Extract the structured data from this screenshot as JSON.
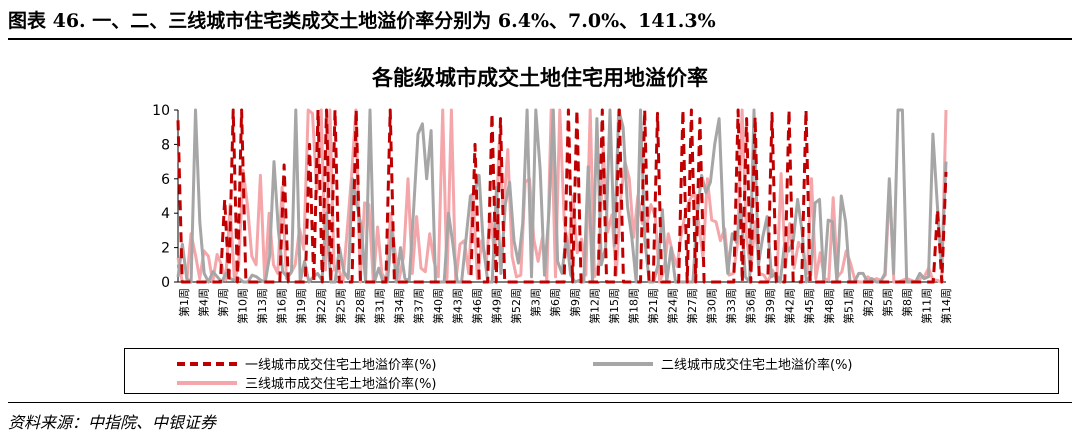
{
  "figure": {
    "title": "图表 46. 一、二、三线城市住宅类成交土地溢价率分别为 6.4%、7.0%、141.3%",
    "source": "资料来源：中指院、中银证券"
  },
  "chart_data": {
    "type": "line",
    "title": "各能级城市成交土地住宅用地溢价率",
    "xlabel": "",
    "ylabel": "",
    "ylim": [
      0,
      10
    ],
    "yticks": [
      0,
      2,
      4,
      6,
      8,
      10
    ],
    "grid": false,
    "legend_position": "bottom",
    "x_tick_labels": [
      "第1周",
      "第4周",
      "第7周",
      "第10周",
      "第13周",
      "第16周",
      "第19周",
      "第22周",
      "第25周",
      "第28周",
      "第31周",
      "第34周",
      "第37周",
      "第40周",
      "第43周",
      "第46周",
      "第49周",
      "第52周",
      "第3周",
      "第6周",
      "第9周",
      "第12周",
      "第15周",
      "第18周",
      "第21周",
      "第24周",
      "第27周",
      "第30周",
      "第33周",
      "第36周",
      "第39周",
      "第42周",
      "第45周",
      "第48周",
      "第51周",
      "第2周",
      "第5周",
      "第8周",
      "第11周",
      "第14周"
    ],
    "series": [
      {
        "name": "一线城市成交住宅土地溢价率(%)",
        "color": "#c00000",
        "style": "dashed",
        "values": [
          9.4,
          0,
          0,
          0,
          0,
          0,
          0,
          0,
          0,
          0,
          0,
          4.8,
          0,
          10,
          0,
          10,
          0,
          0,
          0,
          0,
          0,
          0,
          0,
          0,
          0,
          6.8,
          0,
          0,
          0,
          0,
          0,
          8,
          0,
          10,
          0,
          10,
          0,
          10,
          0,
          0,
          0,
          0,
          10,
          0,
          0,
          0,
          0,
          0,
          0,
          0,
          10,
          0,
          0,
          0,
          0,
          0,
          0,
          0,
          0,
          0,
          0,
          0,
          0,
          0,
          0,
          0,
          0,
          0,
          0,
          0,
          8,
          0,
          0,
          0,
          9.8,
          0,
          9.5,
          0,
          0,
          0,
          0,
          0,
          0,
          0,
          0,
          0,
          0,
          0,
          0,
          0,
          0,
          0,
          10,
          0,
          10,
          0,
          0,
          0,
          0,
          0,
          10,
          0,
          0,
          0,
          10,
          0,
          0,
          0,
          0,
          0,
          10,
          0,
          0,
          9.8,
          0,
          0,
          0,
          0,
          0,
          10,
          0,
          10,
          0,
          9.5,
          0,
          0,
          0,
          0,
          0,
          0,
          0,
          0,
          10,
          0,
          9.5,
          0,
          9.6,
          0,
          0,
          0,
          9.8,
          0,
          0,
          0,
          10,
          0,
          0,
          0,
          10,
          0,
          0,
          0,
          0,
          0,
          0,
          0,
          0,
          0,
          0,
          0,
          0,
          0,
          0,
          0,
          0,
          0,
          0,
          0,
          0,
          0,
          0,
          0,
          0,
          0,
          0,
          0,
          0,
          0,
          0,
          4.2,
          0,
          6.4
        ]
      },
      {
        "name": "二线城市成交住宅土地溢价率(%)",
        "color": "#a6a6a6",
        "style": "solid",
        "values": [
          0.3,
          2.2,
          0.2,
          0,
          10,
          3.5,
          0.5,
          0,
          0.6,
          0.3,
          0,
          0.5,
          0.2,
          0.1,
          0.2,
          0,
          0,
          0.4,
          0.3,
          0.1,
          0,
          1.5,
          7,
          3,
          0.6,
          0.3,
          0.6,
          10,
          0,
          1.2,
          0,
          0.3,
          0.5,
          0.1,
          4,
          0,
          0,
          2,
          0.6,
          0.2,
          6,
          4.5,
          3.2,
          0,
          10,
          0,
          0.8,
          0,
          0,
          3,
          0,
          2,
          0.2,
          0.1,
          4.2,
          8.6,
          9.2,
          6,
          8.8,
          0,
          0,
          0,
          4,
          2.2,
          0,
          0,
          2.5,
          5,
          5.2,
          6.2,
          2,
          0,
          0,
          5.5,
          0.5,
          4.5,
          5.8,
          2.4,
          1.1,
          3.4,
          10,
          0.3,
          10,
          6.5,
          0.4,
          4,
          10,
          1.2,
          0.5,
          2.7,
          0.4,
          0,
          0.1,
          0,
          6.7,
          0,
          9.5,
          1,
          2,
          10,
          2.1,
          10,
          9,
          4.4,
          2.6,
          0,
          10,
          2.4,
          0,
          0,
          1,
          4.2,
          0,
          2,
          0,
          0,
          0,
          0,
          0,
          4,
          6.2,
          5.2,
          5.8,
          8,
          9.5,
          3.2,
          0.5,
          2.8,
          2.3,
          4.5,
          0.3,
          0,
          10,
          1,
          2.6,
          3.8,
          0.3,
          0.5,
          0,
          2.2,
          1.8,
          2.4,
          4.8,
          3,
          0,
          0.4,
          4.6,
          4.8,
          0,
          3.6,
          3.5,
          0,
          5,
          3.5,
          0,
          0,
          0.5,
          0.5,
          0,
          0.2,
          0,
          0,
          0.5,
          6,
          0.5,
          10,
          10,
          0,
          0,
          0,
          0.5,
          0.2,
          0.3,
          8.6,
          4.5,
          0.8,
          7
        ]
      },
      {
        "name": "三线城市成交住宅土地溢价率(%)",
        "color": "#f4a6aa",
        "style": "solid",
        "values": [
          1.4,
          0,
          0,
          2.8,
          1.6,
          0.2,
          1.8,
          1.5,
          0,
          1.6,
          1,
          0.1,
          4.5,
          0.1,
          1,
          6.5,
          4.5,
          1.5,
          1,
          6.2,
          0,
          4,
          1,
          0.5,
          5.5,
          0.2,
          0.5,
          1,
          3.1,
          1.9,
          10,
          9.8,
          5.2,
          10,
          0.7,
          10,
          0.7,
          0.8,
          0,
          3,
          6.2,
          10,
          0,
          4.6,
          4.5,
          0,
          3.2,
          0.5,
          0.1,
          4,
          1.8,
          0.2,
          1.5,
          6,
          0.5,
          3.8,
          0.8,
          0.6,
          2.8,
          1.2,
          0.3,
          10,
          0.2,
          10,
          0,
          2.2,
          2.4,
          0.5,
          5.1,
          0.2,
          2.4,
          1,
          4,
          1.5,
          8,
          4,
          7.7,
          1.5,
          0.3,
          0.4,
          5.8,
          6,
          2.5,
          1.2,
          2.6,
          0.1,
          10,
          0.3,
          10,
          3.6,
          1.5,
          5,
          1.7,
          2.5,
          0.4,
          10,
          0.3,
          1.1,
          7.8,
          2.9,
          3.9,
          0.4,
          4.8,
          7,
          6,
          2.6,
          5,
          3.4,
          3.3,
          4.5,
          3.8,
          0,
          0.7,
          2.8,
          1.7,
          0.9,
          2.8,
          4.1,
          4.8,
          5.2,
          3.4,
          1.4,
          6,
          3.6,
          3.5,
          2.4,
          3.1,
          0.4,
          0.5,
          2.3,
          10,
          2.7,
          0.6,
          3.5,
          0.5,
          0.4,
          0,
          0.7,
          0.1,
          6.3,
          0.9,
          3.4,
          0.8,
          2.3,
          1.8,
          0.5,
          6,
          0.2,
          1.7,
          0.2,
          0.1,
          4.9,
          0.3,
          0.6,
          1.8,
          1.1,
          0.1,
          0,
          0,
          0.3,
          0.1,
          0.2,
          0.1,
          0.4,
          5.8,
          0,
          0,
          0.1,
          0.2,
          0.1,
          0,
          0.2,
          0.3,
          0.8,
          0.1,
          0.1,
          0,
          10
        ]
      }
    ]
  }
}
